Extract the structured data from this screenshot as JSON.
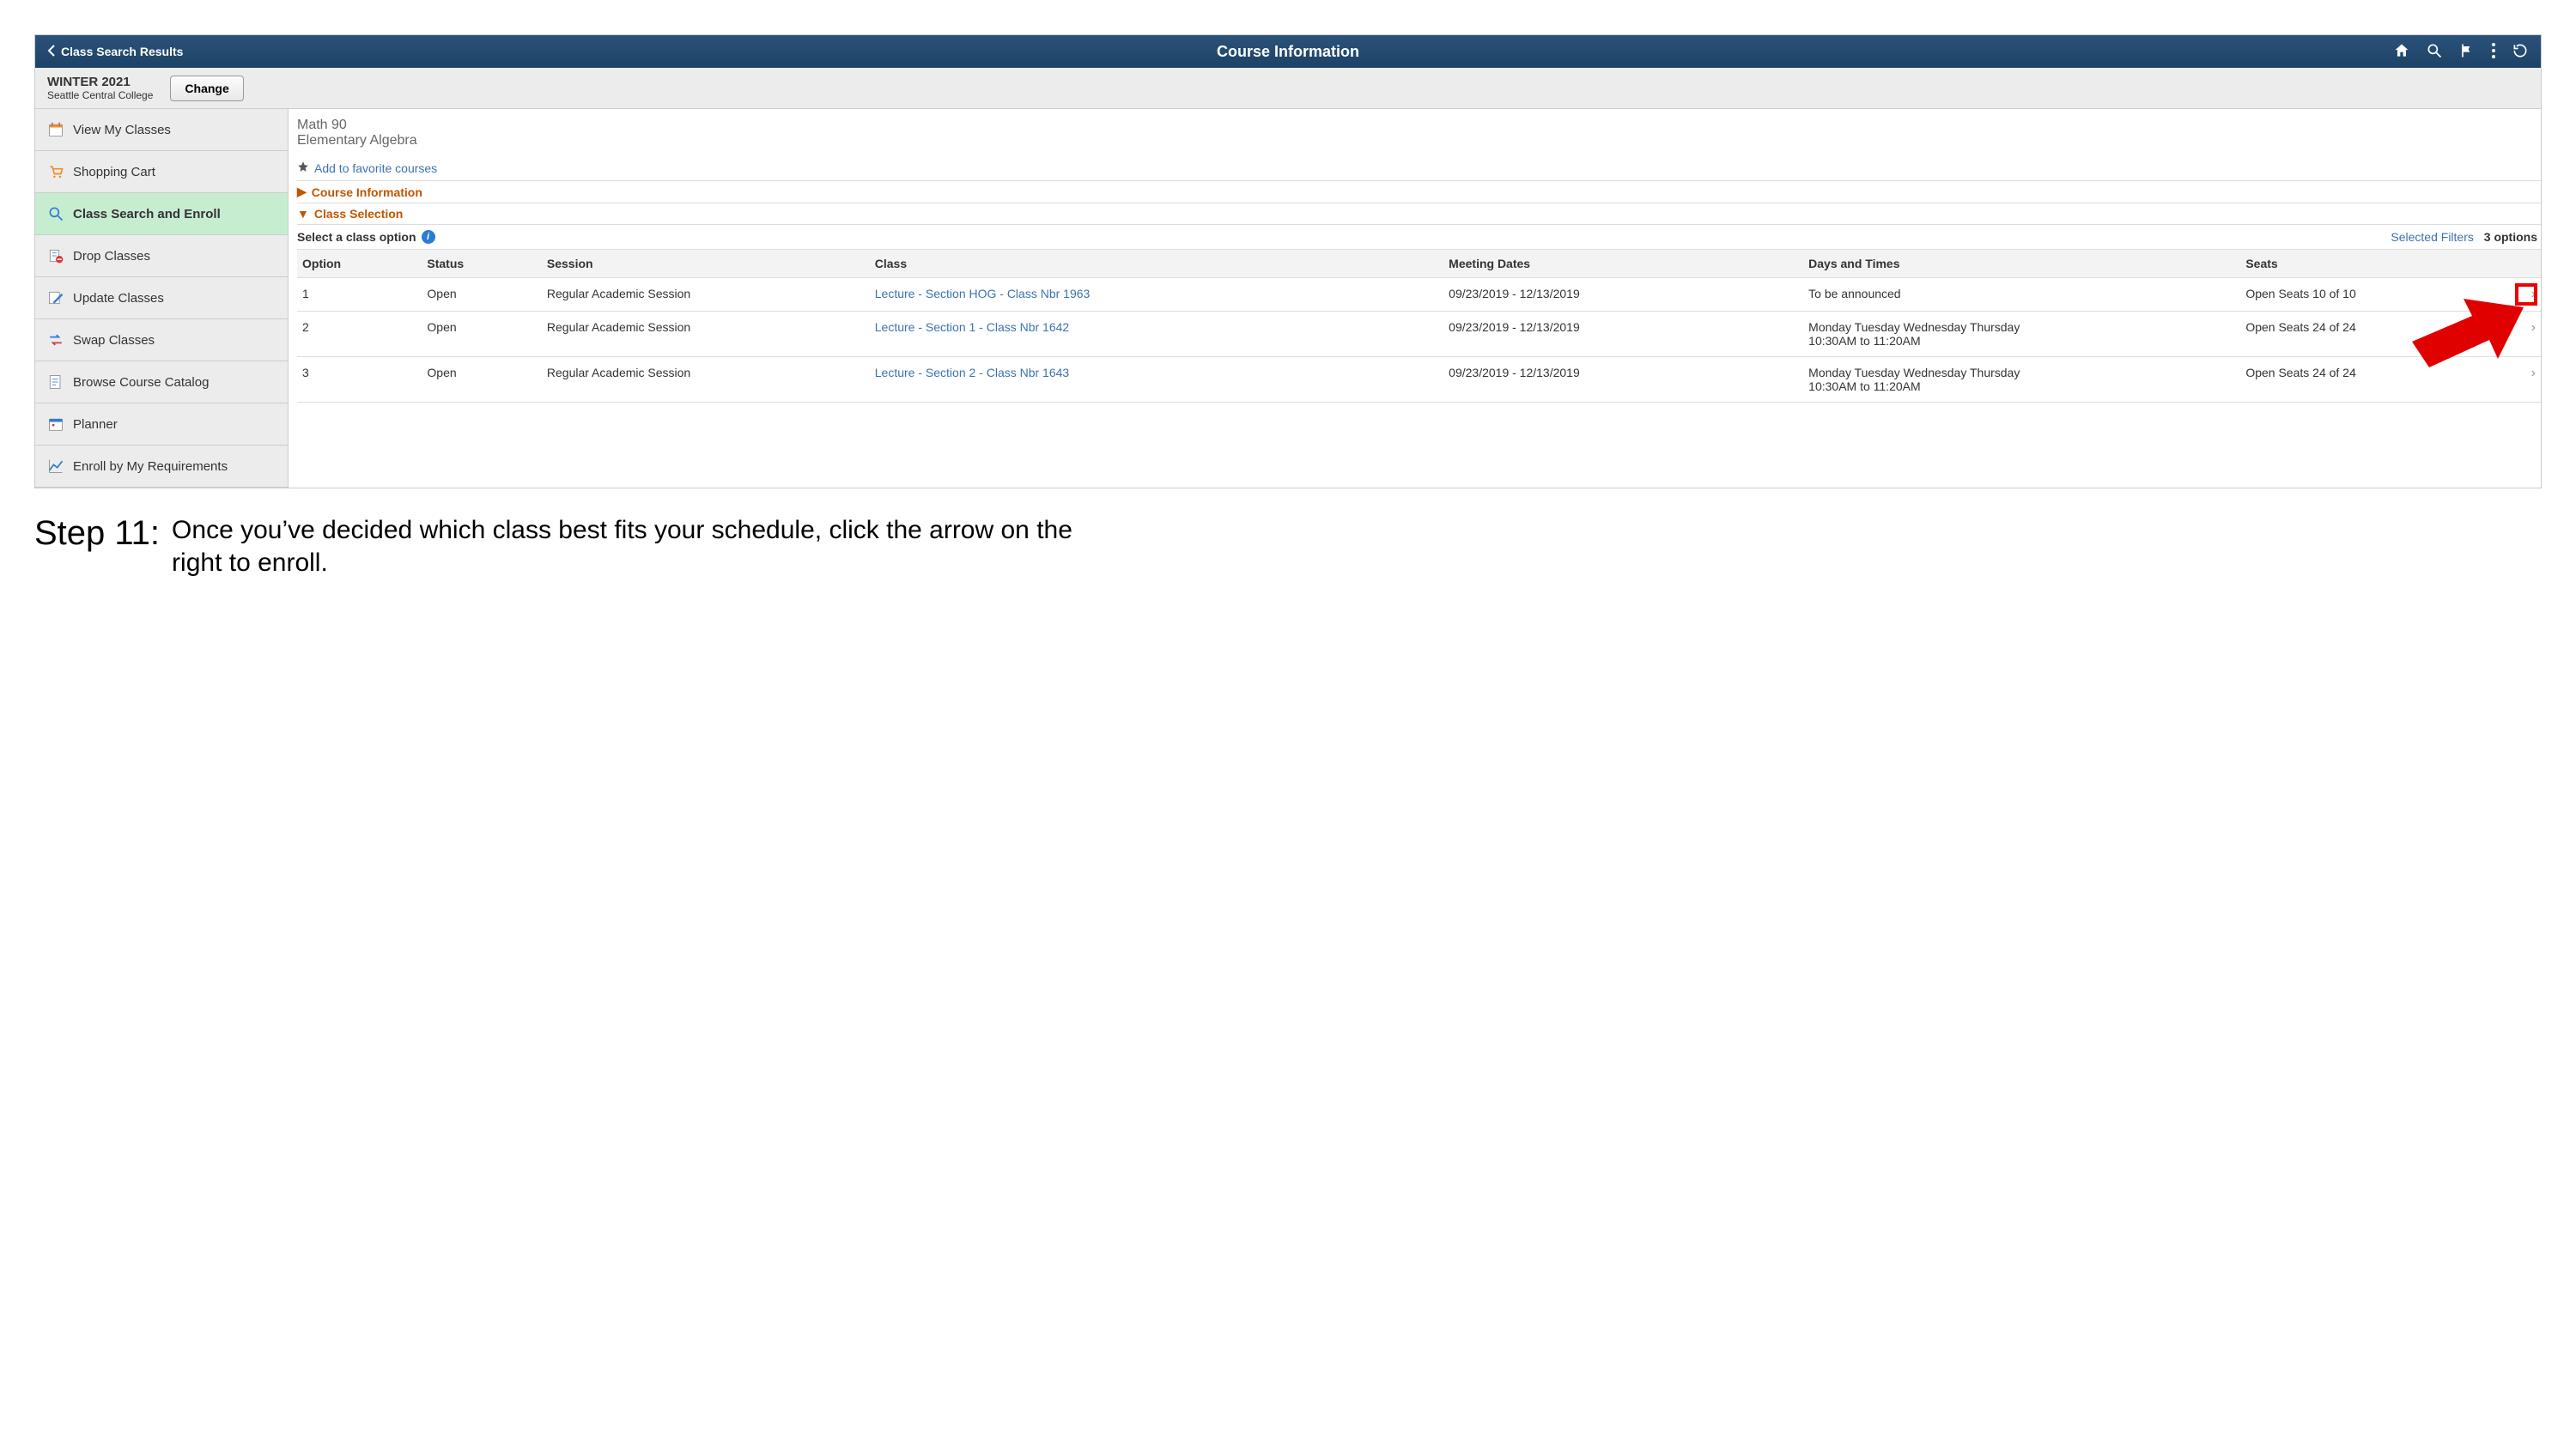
{
  "colors": {
    "header_bg_top": "#2a5278",
    "header_bg_bottom": "#1d4267",
    "link": "#3b73af",
    "accent": "#c05600",
    "sidebar_bg": "#ececec",
    "active_bg": "#c7edd1",
    "highlight_red": "#e00000"
  },
  "topbar": {
    "back_label": "Class Search Results",
    "title": "Course Information"
  },
  "term": {
    "title": "WINTER 2021",
    "subtitle": "Seattle Central College",
    "change_label": "Change"
  },
  "sidebar": {
    "items": [
      {
        "label": "View My Classes",
        "icon": "calendar"
      },
      {
        "label": "Shopping Cart",
        "icon": "cart"
      },
      {
        "label": "Class Search and Enroll",
        "icon": "search",
        "active": true
      },
      {
        "label": "Drop Classes",
        "icon": "drop"
      },
      {
        "label": "Update Classes",
        "icon": "update"
      },
      {
        "label": "Swap Classes",
        "icon": "swap"
      },
      {
        "label": "Browse Course Catalog",
        "icon": "catalog"
      },
      {
        "label": "Planner",
        "icon": "planner"
      },
      {
        "label": "Enroll by My Requirements",
        "icon": "chart"
      }
    ]
  },
  "course": {
    "code": "Math 90",
    "title": "Elementary Algebra",
    "favorite_label": "Add to favorite courses",
    "section_info_label": "Course Information",
    "section_select_label": "Class Selection",
    "select_prompt": "Select a class option",
    "selected_filters_label": "Selected Filters",
    "options_count": "3 options"
  },
  "table": {
    "headers": [
      "Option",
      "Status",
      "Session",
      "Class",
      "Meeting Dates",
      "Days and Times",
      "Seats"
    ],
    "rows": [
      {
        "option": "1",
        "status": "Open",
        "session": "Regular Academic Session",
        "class": "Lecture - Section HOG - Class Nbr 1963",
        "dates": "09/23/2019 - 12/13/2019",
        "times": "To be announced",
        "seats": "Open Seats 10 of 10"
      },
      {
        "option": "2",
        "status": "Open",
        "session": "Regular Academic Session",
        "class": "Lecture - Section 1 - Class Nbr 1642",
        "dates": "09/23/2019 - 12/13/2019",
        "times": "Monday Tuesday Wednesday Thursday\n10:30AM to 11:20AM",
        "seats": "Open Seats 24 of 24"
      },
      {
        "option": "3",
        "status": "Open",
        "session": "Regular Academic Session",
        "class": "Lecture - Section 2 - Class Nbr 1643",
        "dates": "09/23/2019 - 12/13/2019",
        "times": "Monday Tuesday Wednesday Thursday\n10:30AM to 11:20AM",
        "seats": "Open Seats 24 of 24"
      }
    ]
  },
  "caption": {
    "label": "Step 11:",
    "text": "Once you’ve decided which class best fits your schedule, click the arrow on the right to enroll."
  }
}
